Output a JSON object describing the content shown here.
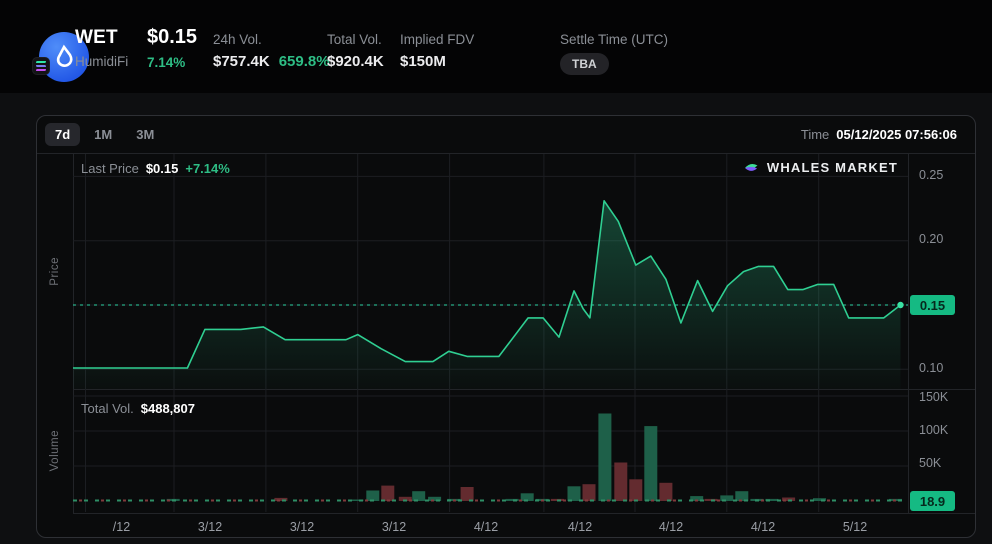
{
  "header": {
    "symbol": "WET",
    "name": "HumidiFi",
    "price": "$0.15",
    "change_pct": "7.14%",
    "stats": [
      {
        "label": "24h Vol.",
        "value": "$757.4K",
        "extra": "659.8%"
      },
      {
        "label": "Total Vol.",
        "value": "$920.4K"
      },
      {
        "label": "Implied FDV",
        "value": "$150M"
      },
      {
        "label": "Settle Time (UTC)",
        "value": "TBA"
      }
    ]
  },
  "toolbar": {
    "ranges": [
      "7d",
      "1M",
      "3M"
    ],
    "active_range": "7d",
    "time_label": "Time",
    "time_value": "05/12/2025 07:56:06"
  },
  "price_pane": {
    "last_price_label": "Last Price",
    "last_price": "$0.15",
    "last_change": "+7.14%",
    "watermark": "WHALES MARKET",
    "axis_title": "Price",
    "current_badge": "0.15"
  },
  "volume_pane": {
    "total_label": "Total Vol.",
    "total_value": "$488,807",
    "axis_title": "Volume",
    "current_badge": "18.9"
  },
  "colors": {
    "accent_green": "#2ebd85",
    "badge_green": "#15ba83",
    "line": "#2fcf92",
    "dotted": "#2fd3a3",
    "dot": "#3ae3a4",
    "buy_bar": "#1e6049",
    "sell_bar": "#632b2f",
    "grid": "#1c1e22",
    "pane_border": "#222428"
  },
  "chart_data": {
    "type": "area+bar",
    "title": "WET 7d price and volume",
    "x_tick_labels": [
      "/12",
      "3/12",
      "3/12",
      "3/12",
      "4/12",
      "4/12",
      "4/12",
      "4/12",
      "5/12"
    ],
    "x_tick_pos": [
      0.015,
      0.121,
      0.231,
      0.341,
      0.451,
      0.564,
      0.673,
      0.783,
      0.893
    ],
    "price": {
      "unit": "USD",
      "ylim": [
        0.085,
        0.267
      ],
      "last": 0.15,
      "ticks": [
        {
          "label": "0.25",
          "value": 0.25
        },
        {
          "label": "0.20",
          "value": 0.2
        },
        {
          "label": "0.15",
          "value": 0.15
        },
        {
          "label": "0.10",
          "value": 0.1
        }
      ],
      "points": [
        [
          0.0,
          0.101
        ],
        [
          0.137,
          0.101
        ],
        [
          0.158,
          0.131
        ],
        [
          0.201,
          0.131
        ],
        [
          0.228,
          0.133
        ],
        [
          0.254,
          0.123
        ],
        [
          0.327,
          0.123
        ],
        [
          0.341,
          0.127
        ],
        [
          0.369,
          0.116
        ],
        [
          0.398,
          0.106
        ],
        [
          0.431,
          0.106
        ],
        [
          0.45,
          0.114
        ],
        [
          0.472,
          0.11
        ],
        [
          0.51,
          0.11
        ],
        [
          0.545,
          0.14
        ],
        [
          0.563,
          0.14
        ],
        [
          0.582,
          0.125
        ],
        [
          0.6,
          0.161
        ],
        [
          0.611,
          0.147
        ],
        [
          0.619,
          0.14
        ],
        [
          0.636,
          0.231
        ],
        [
          0.653,
          0.215
        ],
        [
          0.674,
          0.181
        ],
        [
          0.692,
          0.188
        ],
        [
          0.71,
          0.17
        ],
        [
          0.728,
          0.136
        ],
        [
          0.748,
          0.169
        ],
        [
          0.766,
          0.145
        ],
        [
          0.784,
          0.165
        ],
        [
          0.803,
          0.176
        ],
        [
          0.821,
          0.18
        ],
        [
          0.839,
          0.18
        ],
        [
          0.856,
          0.162
        ],
        [
          0.874,
          0.162
        ],
        [
          0.892,
          0.166
        ],
        [
          0.911,
          0.166
        ],
        [
          0.929,
          0.14
        ],
        [
          0.971,
          0.14
        ],
        [
          0.991,
          0.15
        ]
      ]
    },
    "volume": {
      "unit": "USD",
      "ylim": [
        0,
        160000
      ],
      "ticks": [
        {
          "label": "150K",
          "value": 150000
        },
        {
          "label": "100K",
          "value": 100000
        },
        {
          "label": "50K",
          "value": 50000
        }
      ],
      "bars": [
        {
          "x": 0.12,
          "value": 3000,
          "side": "buy"
        },
        {
          "x": 0.249,
          "value": 4500,
          "side": "sell"
        },
        {
          "x": 0.34,
          "value": 2000,
          "side": "buy"
        },
        {
          "x": 0.359,
          "value": 15000,
          "side": "buy"
        },
        {
          "x": 0.377,
          "value": 22000,
          "side": "sell"
        },
        {
          "x": 0.398,
          "value": 6000,
          "side": "sell"
        },
        {
          "x": 0.414,
          "value": 14000,
          "side": "buy"
        },
        {
          "x": 0.433,
          "value": 6000,
          "side": "buy"
        },
        {
          "x": 0.456,
          "value": 3000,
          "side": "buy"
        },
        {
          "x": 0.472,
          "value": 20000,
          "side": "sell"
        },
        {
          "x": 0.526,
          "value": 3000,
          "side": "buy"
        },
        {
          "x": 0.544,
          "value": 11000,
          "side": "buy"
        },
        {
          "x": 0.562,
          "value": 3000,
          "side": "buy"
        },
        {
          "x": 0.58,
          "value": 3000,
          "side": "sell"
        },
        {
          "x": 0.6,
          "value": 21000,
          "side": "buy"
        },
        {
          "x": 0.618,
          "value": 24000,
          "side": "sell"
        },
        {
          "x": 0.637,
          "value": 125000,
          "side": "buy"
        },
        {
          "x": 0.656,
          "value": 55000,
          "side": "sell"
        },
        {
          "x": 0.674,
          "value": 31000,
          "side": "sell"
        },
        {
          "x": 0.692,
          "value": 107000,
          "side": "buy"
        },
        {
          "x": 0.71,
          "value": 26000,
          "side": "sell"
        },
        {
          "x": 0.747,
          "value": 7000,
          "side": "buy"
        },
        {
          "x": 0.764,
          "value": 3000,
          "side": "sell"
        },
        {
          "x": 0.783,
          "value": 8000,
          "side": "buy"
        },
        {
          "x": 0.801,
          "value": 14000,
          "side": "buy"
        },
        {
          "x": 0.819,
          "value": 3000,
          "side": "buy"
        },
        {
          "x": 0.837,
          "value": 3000,
          "side": "buy"
        },
        {
          "x": 0.857,
          "value": 5000,
          "side": "sell"
        },
        {
          "x": 0.894,
          "value": 4000,
          "side": "buy"
        },
        {
          "x": 0.985,
          "value": 3000,
          "side": "buy"
        }
      ]
    }
  }
}
